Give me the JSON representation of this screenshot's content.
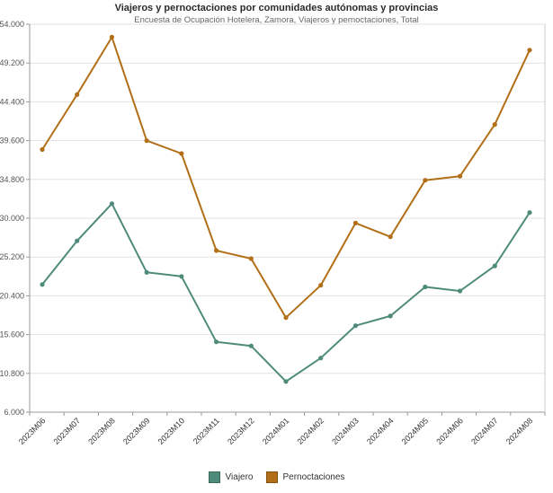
{
  "header": {
    "title": "Viajeros y pernoctaciones por comunidades autónomas y provincias",
    "subtitle": "Encuesta de Ocupación Hotelera, Zamora, Viajeros y pernoctaciones, Total"
  },
  "legend": {
    "items": [
      {
        "label": "Viajero",
        "color": "#4e8b7a"
      },
      {
        "label": "Pernoctaciones",
        "color": "#b26f17"
      }
    ]
  },
  "axis": {
    "y_tick_labels": [
      "6.000",
      "10.800",
      "15.600",
      "20.400",
      "25.200",
      "30.000",
      "34.800",
      "39.600",
      "44.400",
      "49.200",
      "54.000"
    ],
    "x_tick_labels": [
      "2023M06",
      "2023M07",
      "2023M08",
      "2023M09",
      "2023M10",
      "2023M11",
      "2023M12",
      "2024M01",
      "2024M02",
      "2024M03",
      "2024M04",
      "2024M05",
      "2024M06",
      "2024M07",
      "2024M08"
    ]
  },
  "colors": {
    "grid": "#e2e2e2",
    "axis_line": "#9a9a9a",
    "plot_border": "#cccccc",
    "tick_text": "#555555",
    "x_label_text": "#333333"
  },
  "chart_data": {
    "type": "line",
    "title": "Viajeros y pernoctaciones por comunidades autónomas y provincias",
    "subtitle": "Encuesta de Ocupación Hotelera, Zamora, Viajeros y pernoctaciones, Total",
    "categories": [
      "2023M06",
      "2023M07",
      "2023M08",
      "2023M09",
      "2023M10",
      "2023M11",
      "2023M12",
      "2024M01",
      "2024M02",
      "2024M03",
      "2024M04",
      "2024M05",
      "2024M06",
      "2024M07",
      "2024M08"
    ],
    "series": [
      {
        "name": "Viajero",
        "color": "#4e8b7a",
        "values": [
          21800,
          27200,
          31800,
          23300,
          22800,
          14700,
          14200,
          9800,
          12700,
          16700,
          17900,
          21500,
          21000,
          24100,
          30700
        ]
      },
      {
        "name": "Pernoctaciones",
        "color": "#b26f17",
        "values": [
          38500,
          45300,
          52400,
          39600,
          38000,
          26000,
          25000,
          17700,
          21700,
          29400,
          27700,
          34700,
          35200,
          41600,
          50800
        ]
      }
    ],
    "ylim": [
      6000,
      54000
    ],
    "yticks": [
      6000,
      10800,
      15600,
      20400,
      25200,
      30000,
      34800,
      39600,
      44400,
      49200,
      54000
    ],
    "xlabel": "",
    "ylabel": "",
    "grid": "horizontal",
    "legend_position": "bottom",
    "x_label_rotation": -45
  }
}
